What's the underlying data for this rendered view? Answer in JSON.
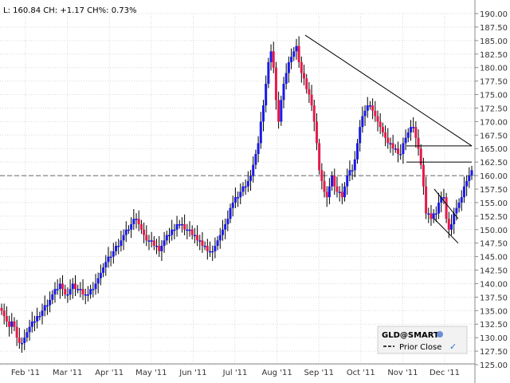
{
  "header": {
    "quote": "L: 160.84 CH: +1.17 CH%: 0.73%"
  },
  "legend": {
    "symbol": "GLD@SMART",
    "prior_close_label": "Prior Close",
    "globe_icon": "globe-icon",
    "check_icon": "checkmark-icon"
  },
  "colors": {
    "up": "#1a1ae6",
    "down": "#e6194b",
    "grid": "#d9d9d9",
    "trendline": "#000000",
    "prior_close": "#666666"
  },
  "chart_data": {
    "type": "candlestick",
    "ylim": [
      125.0,
      190.0
    ],
    "yticks": [
      "190.00",
      "187.50",
      "185.00",
      "182.50",
      "180.00",
      "177.50",
      "175.00",
      "172.50",
      "170.00",
      "167.50",
      "165.00",
      "162.50",
      "160.00",
      "157.50",
      "155.00",
      "152.50",
      "150.00",
      "147.50",
      "145.00",
      "142.50",
      "140.00",
      "137.50",
      "135.00",
      "132.50",
      "130.00",
      "127.50",
      "125.00"
    ],
    "xlabels": [
      "Feb '11",
      "Mar '11",
      "Apr '11",
      "May '11",
      "Jun '11",
      "Jul '11",
      "Aug '11",
      "Sep '11",
      "Oct '11",
      "Nov '11",
      "Dec '11"
    ],
    "prior_close": 160.0,
    "closes": [
      135,
      134,
      133,
      132,
      133,
      132,
      130,
      129,
      129,
      130,
      131,
      132,
      133,
      133,
      134,
      134,
      135,
      136,
      136,
      137,
      138,
      139,
      139,
      140,
      139,
      138,
      138,
      139,
      140,
      139,
      139,
      139,
      138,
      138,
      138,
      139,
      139,
      140,
      141,
      142,
      143,
      144,
      145,
      145,
      146,
      147,
      147,
      148,
      149,
      150,
      150,
      151,
      152,
      152,
      151,
      150,
      149,
      148,
      148,
      148,
      147,
      147,
      146,
      147,
      148,
      149,
      149,
      150,
      150,
      151,
      151,
      151,
      150,
      150,
      150,
      149,
      149,
      148,
      148,
      147,
      147,
      146,
      146,
      146,
      147,
      148,
      149,
      150,
      151,
      152,
      154,
      155,
      156,
      156,
      157,
      158,
      158,
      159,
      160,
      162,
      164,
      166,
      170,
      173,
      177,
      181,
      183,
      180,
      174,
      170,
      174,
      177,
      179,
      181,
      182,
      183,
      184,
      181,
      179,
      178,
      176,
      175,
      173,
      170,
      166,
      161,
      159,
      157,
      156,
      158,
      160,
      158,
      157,
      157,
      156,
      158,
      160,
      161,
      161,
      163,
      166,
      169,
      171,
      172,
      173,
      173,
      172,
      171,
      170,
      169,
      168,
      167,
      166,
      166,
      165,
      165,
      164,
      164,
      166,
      167,
      168,
      169,
      169,
      167,
      165,
      162,
      158,
      153,
      153,
      152,
      153,
      153,
      155,
      156,
      156,
      152,
      150,
      151,
      153,
      154,
      155,
      156,
      158,
      159,
      160,
      161
    ],
    "trendlines": [
      {
        "from": [
          383,
          186.0
        ],
        "to": [
          592,
          165.5
        ]
      },
      {
        "from": [
          510,
          165.5
        ],
        "to": [
          592,
          165.5
        ]
      },
      {
        "from": [
          510,
          162.5
        ],
        "to": [
          592,
          162.5
        ]
      },
      {
        "from": [
          545,
          152.0
        ],
        "to": [
          575,
          147.5
        ]
      },
      {
        "from": [
          545,
          157.5
        ],
        "to": [
          575,
          152.0
        ]
      }
    ]
  }
}
